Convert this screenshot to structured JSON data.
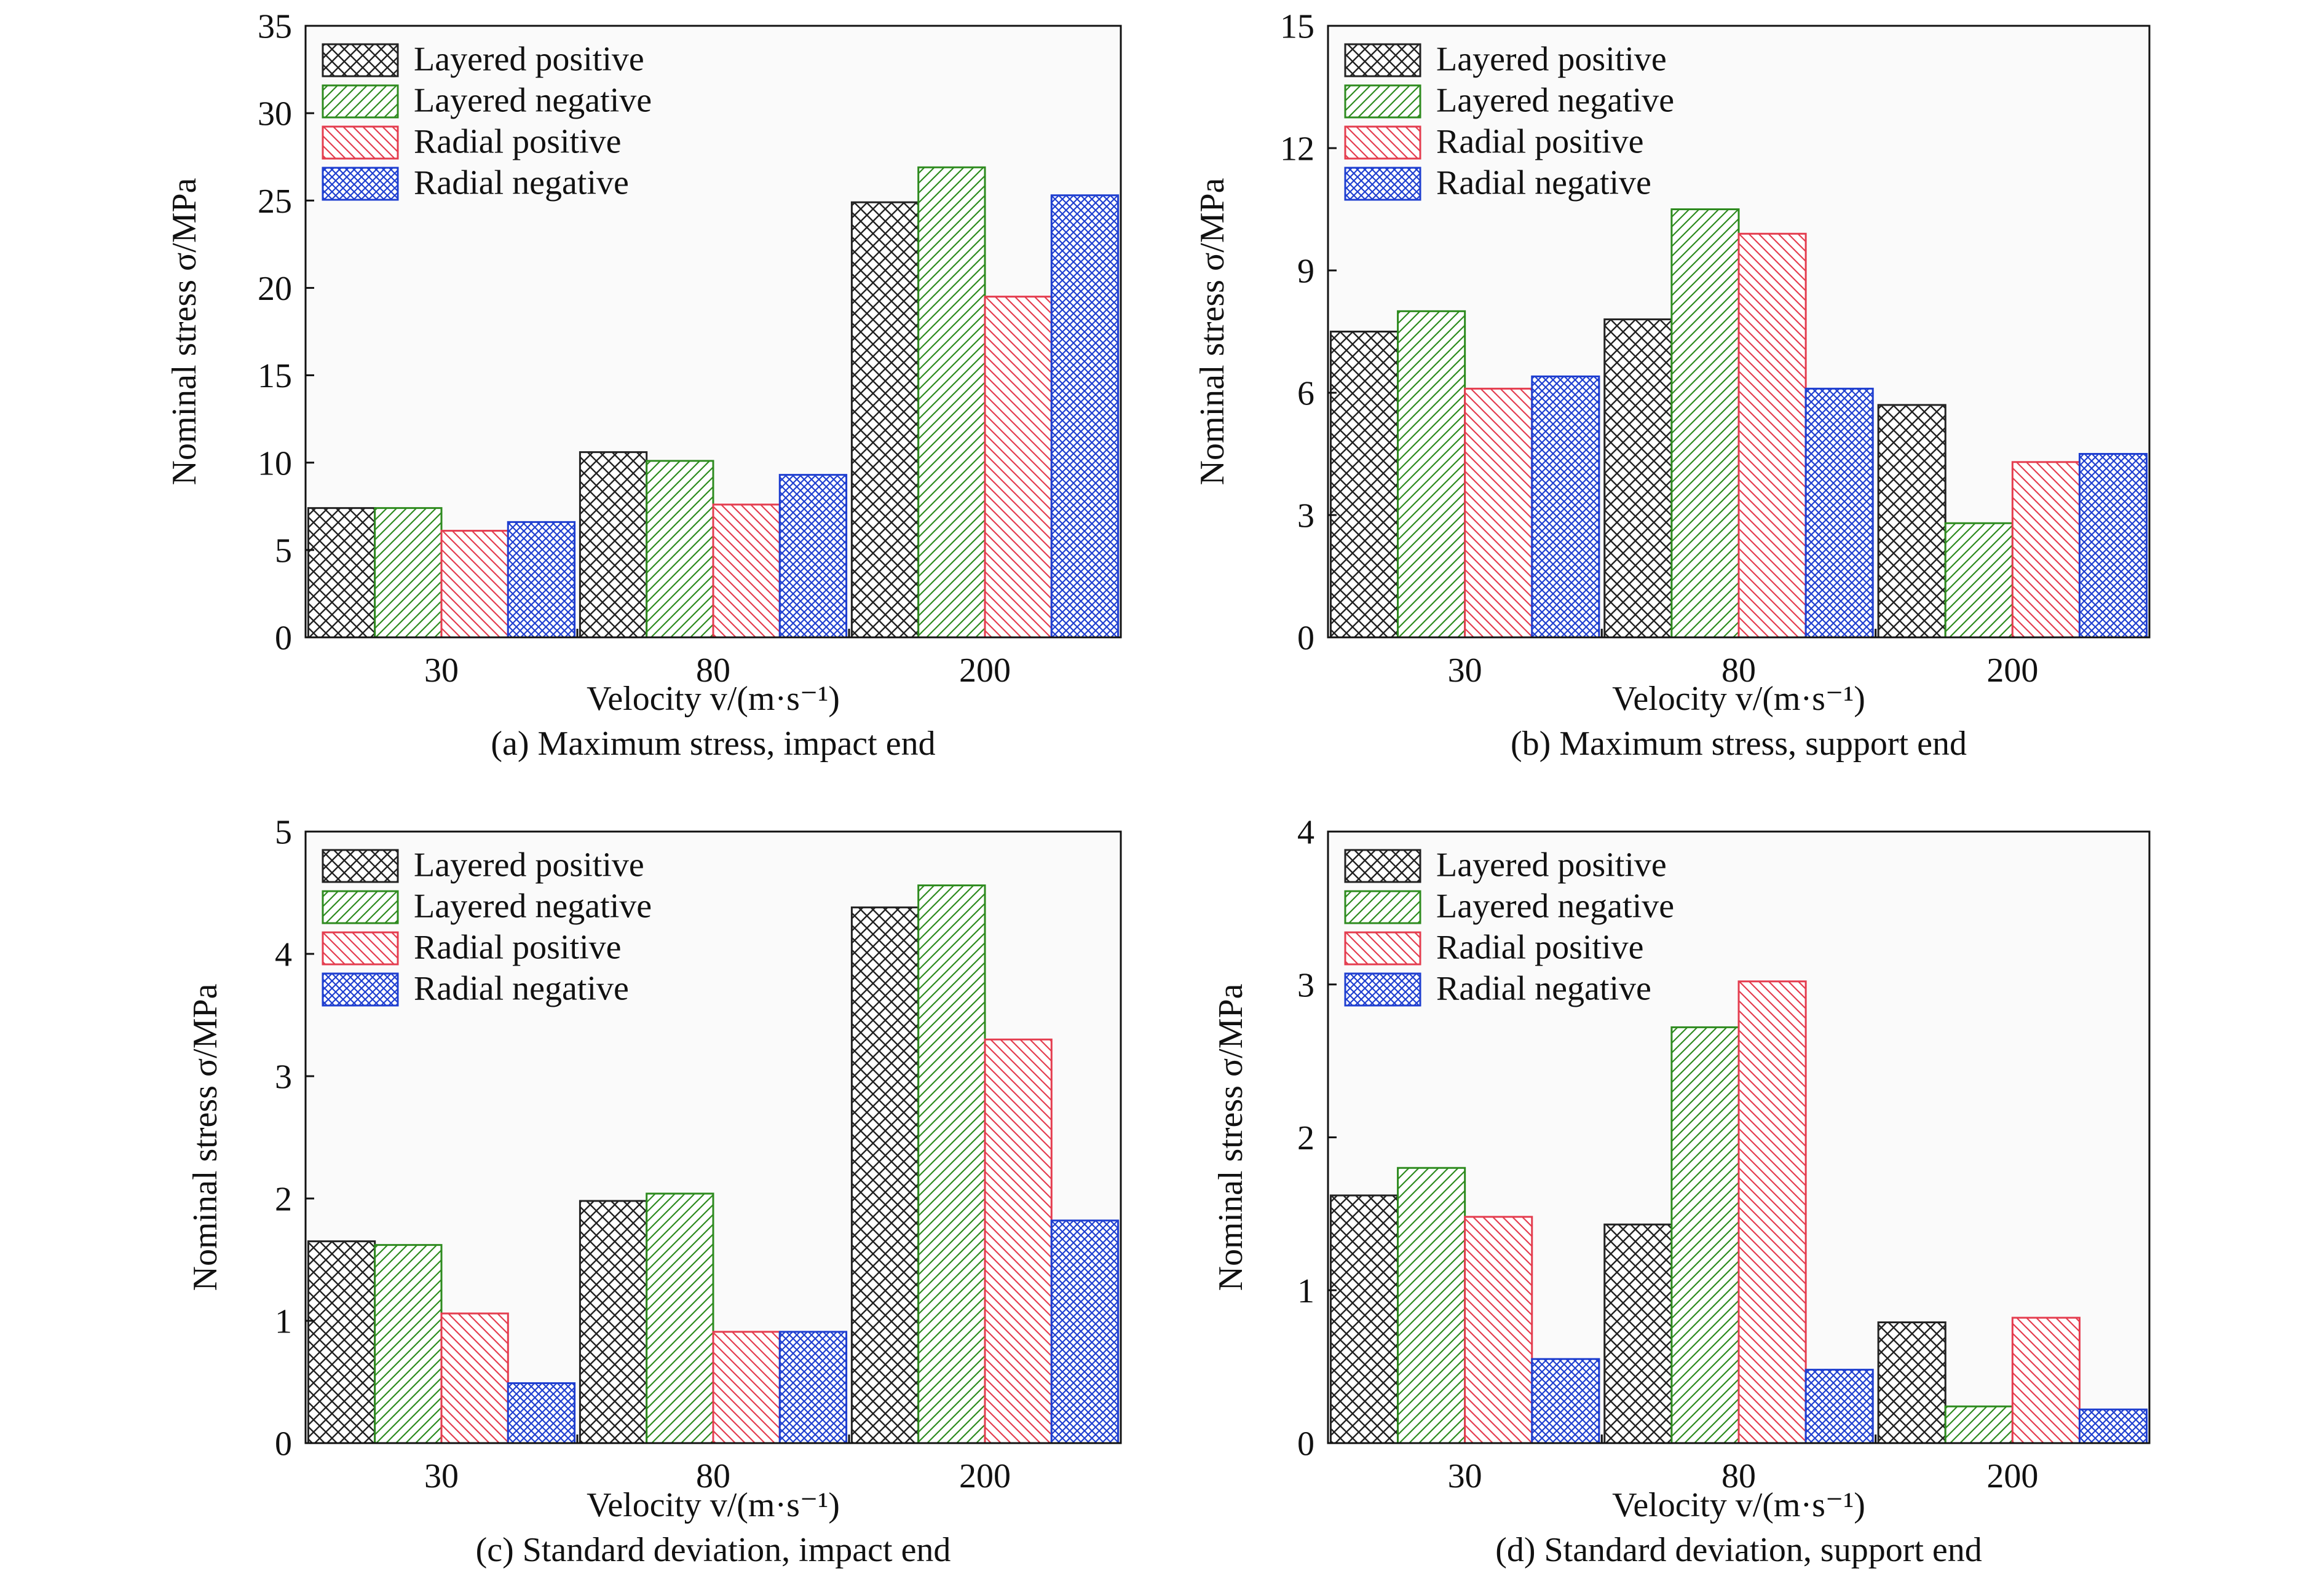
{
  "figure": {
    "background": "#ffffff",
    "panel_background": "#fafafa",
    "axis_color": "#111111"
  },
  "legend_entries": [
    {
      "label": "Layered positive",
      "color": "#222222",
      "pattern": "crosshatch-dense"
    },
    {
      "label": "Layered negative",
      "color": "#2e8b1f",
      "pattern": "diag-forward"
    },
    {
      "label": "Radial positive",
      "color": "#e43d4f",
      "pattern": "diag-backward"
    },
    {
      "label": "Radial negative",
      "color": "#1f3fd0",
      "pattern": "crosshatch-fine"
    }
  ],
  "chart_data": [
    {
      "type": "bar",
      "title": "(a) Maximum stress, impact end",
      "xlabel": "Velocity v/(m·s⁻¹)",
      "ylabel": "Nominal stress σ/MPa",
      "categories": [
        "30",
        "80",
        "200"
      ],
      "ylim": [
        0,
        35
      ],
      "yticks": [
        0,
        5,
        10,
        15,
        20,
        25,
        30,
        35
      ],
      "legend_position": "top-left",
      "grid": false,
      "series": [
        {
          "name": "Layered positive",
          "values": [
            7.4,
            10.6,
            24.9
          ]
        },
        {
          "name": "Layered negative",
          "values": [
            7.4,
            10.1,
            26.9
          ]
        },
        {
          "name": "Radial positive",
          "values": [
            6.1,
            7.6,
            19.5
          ]
        },
        {
          "name": "Radial negative",
          "values": [
            6.6,
            9.3,
            25.3
          ]
        }
      ]
    },
    {
      "type": "bar",
      "title": "(b) Maximum stress, support end",
      "xlabel": "Velocity v/(m·s⁻¹)",
      "ylabel": "Nominal stress σ/MPa",
      "categories": [
        "30",
        "80",
        "200"
      ],
      "ylim": [
        0,
        15
      ],
      "yticks": [
        0,
        3,
        6,
        9,
        12,
        15
      ],
      "legend_position": "top-left",
      "grid": false,
      "series": [
        {
          "name": "Layered positive",
          "values": [
            7.5,
            7.8,
            5.7
          ]
        },
        {
          "name": "Layered negative",
          "values": [
            8.0,
            10.5,
            2.8
          ]
        },
        {
          "name": "Radial positive",
          "values": [
            6.1,
            9.9,
            4.3
          ]
        },
        {
          "name": "Radial negative",
          "values": [
            6.4,
            6.1,
            4.5
          ]
        }
      ]
    },
    {
      "type": "bar",
      "title": "(c) Standard deviation, impact end",
      "xlabel": "Velocity v/(m·s⁻¹)",
      "ylabel": "Nominal stress σ/MPa",
      "categories": [
        "30",
        "80",
        "200"
      ],
      "ylim": [
        0,
        5
      ],
      "yticks": [
        0,
        1,
        2,
        3,
        4,
        5
      ],
      "legend_position": "top-left",
      "grid": false,
      "series": [
        {
          "name": "Layered positive",
          "values": [
            1.65,
            1.98,
            4.38
          ]
        },
        {
          "name": "Layered negative",
          "values": [
            1.62,
            2.04,
            4.56
          ]
        },
        {
          "name": "Radial positive",
          "values": [
            1.06,
            0.91,
            3.3
          ]
        },
        {
          "name": "Radial negative",
          "values": [
            0.49,
            0.91,
            1.82
          ]
        }
      ]
    },
    {
      "type": "bar",
      "title": "(d) Standard deviation, support end",
      "xlabel": "Velocity v/(m·s⁻¹)",
      "ylabel": "Nominal stress σ/MPa",
      "categories": [
        "30",
        "80",
        "200"
      ],
      "ylim": [
        0,
        4
      ],
      "yticks": [
        0,
        1,
        2,
        3,
        4
      ],
      "legend_position": "top-left",
      "grid": false,
      "series": [
        {
          "name": "Layered positive",
          "values": [
            1.62,
            1.43,
            0.79
          ]
        },
        {
          "name": "Layered negative",
          "values": [
            1.8,
            2.72,
            0.24
          ]
        },
        {
          "name": "Radial positive",
          "values": [
            1.48,
            3.02,
            0.82
          ]
        },
        {
          "name": "Radial negative",
          "values": [
            0.55,
            0.48,
            0.22
          ]
        }
      ]
    }
  ]
}
